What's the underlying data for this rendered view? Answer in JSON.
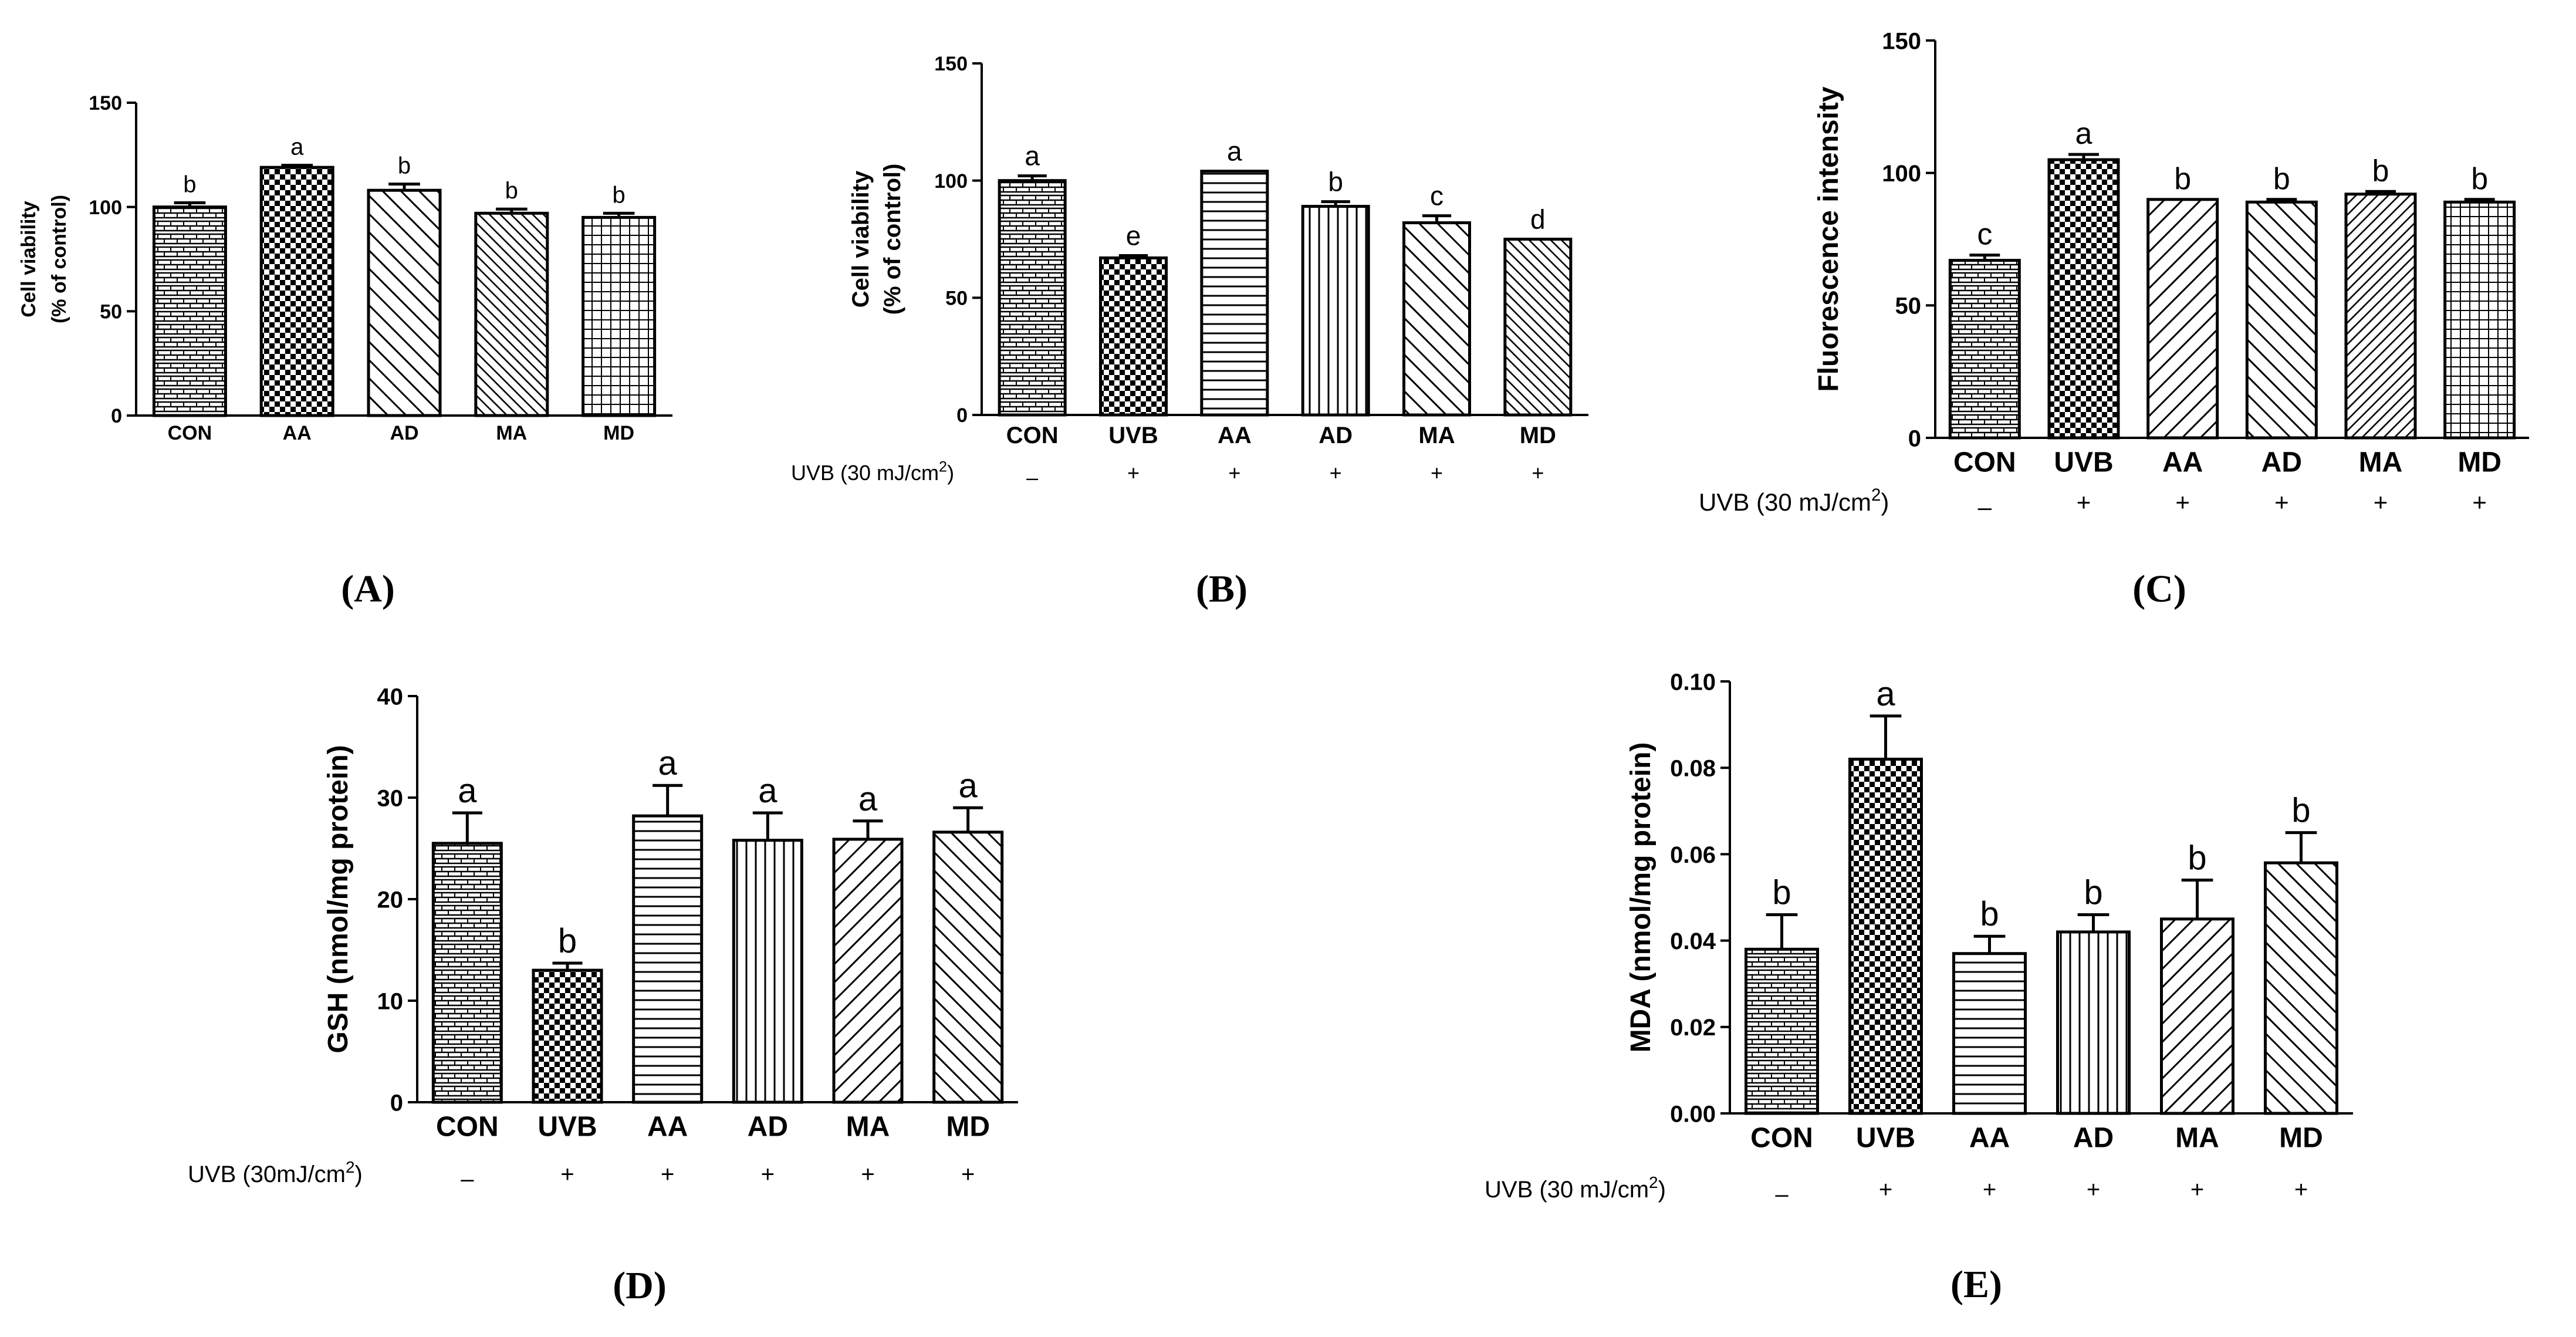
{
  "chart_data": [
    {
      "id": "A",
      "type": "bar",
      "panel_label": "(A)",
      "title": "",
      "xlabel": "",
      "ylabel_lines": [
        "Cell viability",
        "(% of control)"
      ],
      "ylim": [
        0,
        150
      ],
      "yticks": [
        "0",
        "50",
        "100",
        "150"
      ],
      "categories": [
        "CON",
        "AA",
        "AD",
        "MA",
        "MD"
      ],
      "values": [
        100,
        119,
        108,
        97,
        95
      ],
      "errors": [
        2,
        1,
        3,
        2,
        2
      ],
      "letters": [
        "b",
        "a",
        "b",
        "b",
        "b"
      ],
      "patterns": [
        "hbrick",
        "check",
        "diag-bs",
        "diag-bs-dense",
        "grid"
      ],
      "condition": null
    },
    {
      "id": "B",
      "type": "bar",
      "panel_label": "(B)",
      "title": "",
      "xlabel": "",
      "ylabel_lines": [
        "Cell viability",
        "(% of control)"
      ],
      "ylim": [
        0,
        150
      ],
      "yticks": [
        "0",
        "50",
        "100",
        "150"
      ],
      "categories": [
        "CON",
        "UVB",
        "AA",
        "AD",
        "MA",
        "MD"
      ],
      "values": [
        100,
        67,
        104,
        89,
        82,
        75
      ],
      "errors": [
        2,
        1,
        0,
        2,
        3,
        0
      ],
      "letters": [
        "a",
        "e",
        "a",
        "b",
        "c",
        "d"
      ],
      "patterns": [
        "hbrick",
        "check",
        "hlines",
        "vlines",
        "diag-bs",
        "diag-bs-dense"
      ],
      "condition": {
        "label": "UVB (30 mJ/cm",
        "superscript": "2",
        "label_end": ")",
        "signs": [
          "–",
          "+",
          "+",
          "+",
          "+",
          "+"
        ]
      }
    },
    {
      "id": "C",
      "type": "bar",
      "panel_label": "(C)",
      "title": "",
      "xlabel": "",
      "ylabel_lines": [
        "Fluorescence intensity"
      ],
      "ylim": [
        0,
        150
      ],
      "yticks": [
        "0",
        "50",
        "100",
        "150"
      ],
      "categories": [
        "CON",
        "UVB",
        "AA",
        "AD",
        "MA",
        "MD"
      ],
      "values": [
        67,
        105,
        90,
        89,
        92,
        89
      ],
      "errors": [
        2,
        2,
        0,
        1,
        1,
        1
      ],
      "letters": [
        "c",
        "a",
        "b",
        "b",
        "b",
        "b"
      ],
      "patterns": [
        "hbrick",
        "check",
        "diag-fs",
        "diag-bs",
        "diag-fs-dense",
        "grid"
      ],
      "condition": {
        "label": "UVB (30 mJ/cm",
        "superscript": "2",
        "label_end": ")",
        "signs": [
          "–",
          "+",
          "+",
          "+",
          "+",
          "+"
        ]
      }
    },
    {
      "id": "D",
      "type": "bar",
      "panel_label": "(D)",
      "title": "",
      "xlabel": "",
      "ylabel_lines": [
        "GSH (nmol/mg protein)"
      ],
      "ylim": [
        0,
        40
      ],
      "yticks": [
        "0",
        "10",
        "20",
        "30",
        "40"
      ],
      "categories": [
        "CON",
        "UVB",
        "AA",
        "AD",
        "MA",
        "MD"
      ],
      "values": [
        25.5,
        13,
        28.2,
        25.8,
        25.9,
        26.6
      ],
      "errors": [
        3,
        0.7,
        3,
        2.7,
        1.8,
        2.4
      ],
      "letters": [
        "a",
        "b",
        "a",
        "a",
        "a",
        "a"
      ],
      "patterns": [
        "hbrick",
        "check",
        "hlines",
        "vlines",
        "diag-fs",
        "diag-bs"
      ],
      "condition": {
        "label": "UVB (30mJ/cm",
        "superscript": "2",
        "label_end": ")",
        "signs": [
          "–",
          "+",
          "+",
          "+",
          "+",
          "+"
        ]
      }
    },
    {
      "id": "E",
      "type": "bar",
      "panel_label": "(E)",
      "title": "",
      "xlabel": "",
      "ylabel_lines": [
        "MDA (nmol/mg protein)"
      ],
      "ylim": [
        0,
        0.1
      ],
      "yticks": [
        "0.00",
        "0.02",
        "0.04",
        "0.06",
        "0.08",
        "0.10"
      ],
      "categories": [
        "CON",
        "UVB",
        "AA",
        "AD",
        "MA",
        "MD"
      ],
      "values": [
        0.038,
        0.082,
        0.037,
        0.042,
        0.045,
        0.058
      ],
      "errors": [
        0.008,
        0.01,
        0.004,
        0.004,
        0.009,
        0.007
      ],
      "letters": [
        "b",
        "a",
        "b",
        "b",
        "b",
        "b"
      ],
      "patterns": [
        "hbrick",
        "check",
        "hlines",
        "vlines",
        "diag-fs",
        "diag-bs"
      ],
      "condition": {
        "label": "UVB  (30 mJ/cm",
        "superscript": "2",
        "label_end": ")",
        "signs": [
          "–",
          "+",
          "+",
          "+",
          "+",
          "+"
        ]
      }
    }
  ]
}
